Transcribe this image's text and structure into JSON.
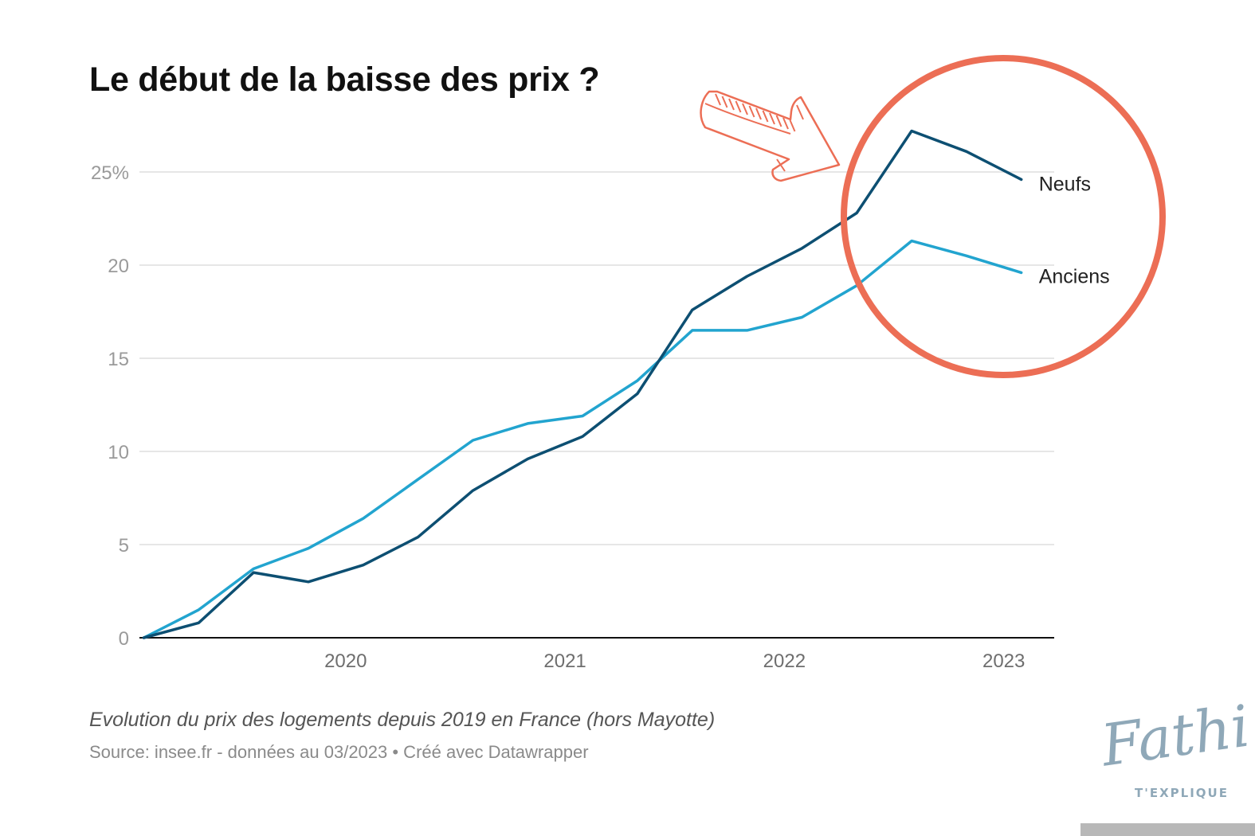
{
  "header": {
    "title": "Le début de la baisse des prix ?"
  },
  "footer": {
    "caption": "Evolution du prix des logements depuis 2019 en France (hors Mayotte)",
    "source": "Source: insee.fr - données au 03/2023 • Créé avec Datawrapper"
  },
  "logo": {
    "script": "Fathi",
    "subtitle": "T'EXPLIQUE"
  },
  "colors": {
    "neufs": "#0d4f72",
    "anciens": "#22a4cf",
    "annotation": "#ec6e55",
    "grid": "#e6e6e6",
    "axis": "#111111"
  },
  "annotation": {
    "shapes": [
      "circle",
      "arrow"
    ],
    "color": "#ec6e55"
  },
  "chart_data": {
    "type": "line",
    "title": "Le début de la baisse des prix ?",
    "xlabel": "",
    "ylabel": "",
    "ylim": [
      0,
      25
    ],
    "xlim": [
      2019.06,
      2023.23
    ],
    "y_ticks": [
      0,
      5,
      10,
      15,
      20,
      25
    ],
    "y_tick_labels": [
      "0",
      "5",
      "10",
      "15",
      "20",
      "25%"
    ],
    "x_ticks": [
      2020,
      2021,
      2022,
      2023
    ],
    "x_tick_labels": [
      "2020",
      "2021",
      "2022",
      "2023"
    ],
    "grid": true,
    "legend": "direct labels at line ends",
    "series": [
      {
        "name": "Neufs",
        "x": [
          2019.08,
          2019.33,
          2019.58,
          2019.83,
          2020.08,
          2020.33,
          2020.58,
          2020.83,
          2021.08,
          2021.33,
          2021.58,
          2021.83,
          2022.08,
          2022.33,
          2022.58,
          2022.83,
          2023.08
        ],
        "values": [
          0,
          0.8,
          3.5,
          3.0,
          3.9,
          5.4,
          7.9,
          9.6,
          10.8,
          13.1,
          17.6,
          19.4,
          20.9,
          22.8,
          27.2,
          26.1,
          24.6
        ]
      },
      {
        "name": "Anciens",
        "x": [
          2019.08,
          2019.33,
          2019.58,
          2019.83,
          2020.08,
          2020.33,
          2020.58,
          2020.83,
          2021.08,
          2021.33,
          2021.58,
          2021.83,
          2022.08,
          2022.33,
          2022.58,
          2022.83,
          2023.08
        ],
        "values": [
          0,
          1.5,
          3.7,
          4.8,
          6.4,
          8.5,
          10.6,
          11.5,
          11.9,
          13.8,
          16.5,
          16.5,
          17.2,
          18.9,
          21.3,
          20.5,
          19.6
        ]
      }
    ]
  }
}
